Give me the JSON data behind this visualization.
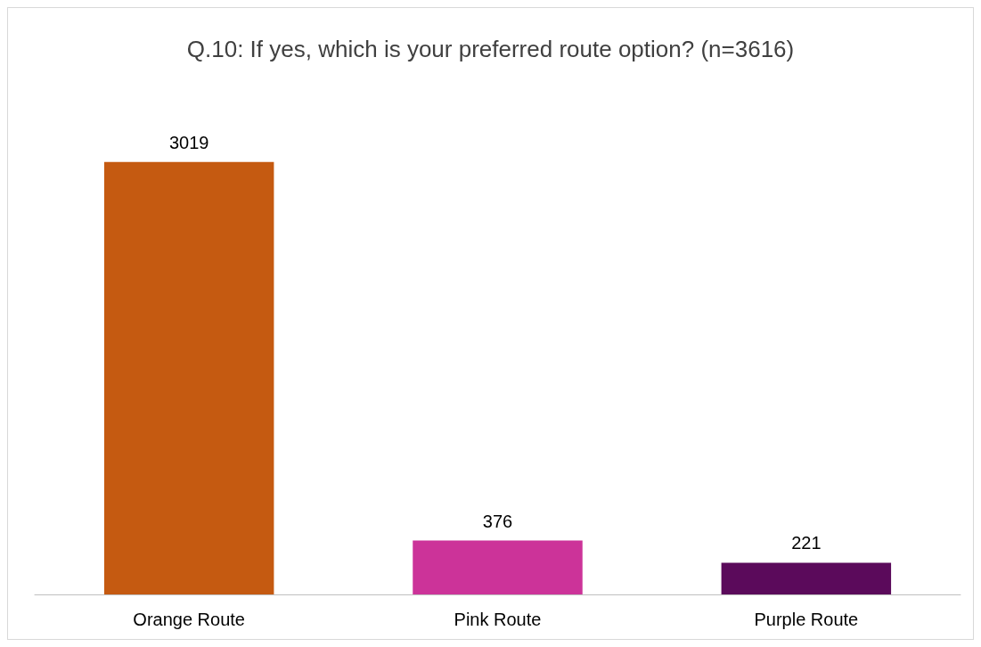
{
  "chart_data": {
    "type": "bar",
    "title": "Q.10: If yes, which is your preferred route option? (n=3616)",
    "categories": [
      "Orange Route",
      "Pink Route",
      "Purple Route"
    ],
    "values": [
      3019,
      376,
      221
    ],
    "colors": [
      "#c55a11",
      "#cc3399",
      "#5b0a5b"
    ],
    "data_labels": true
  }
}
